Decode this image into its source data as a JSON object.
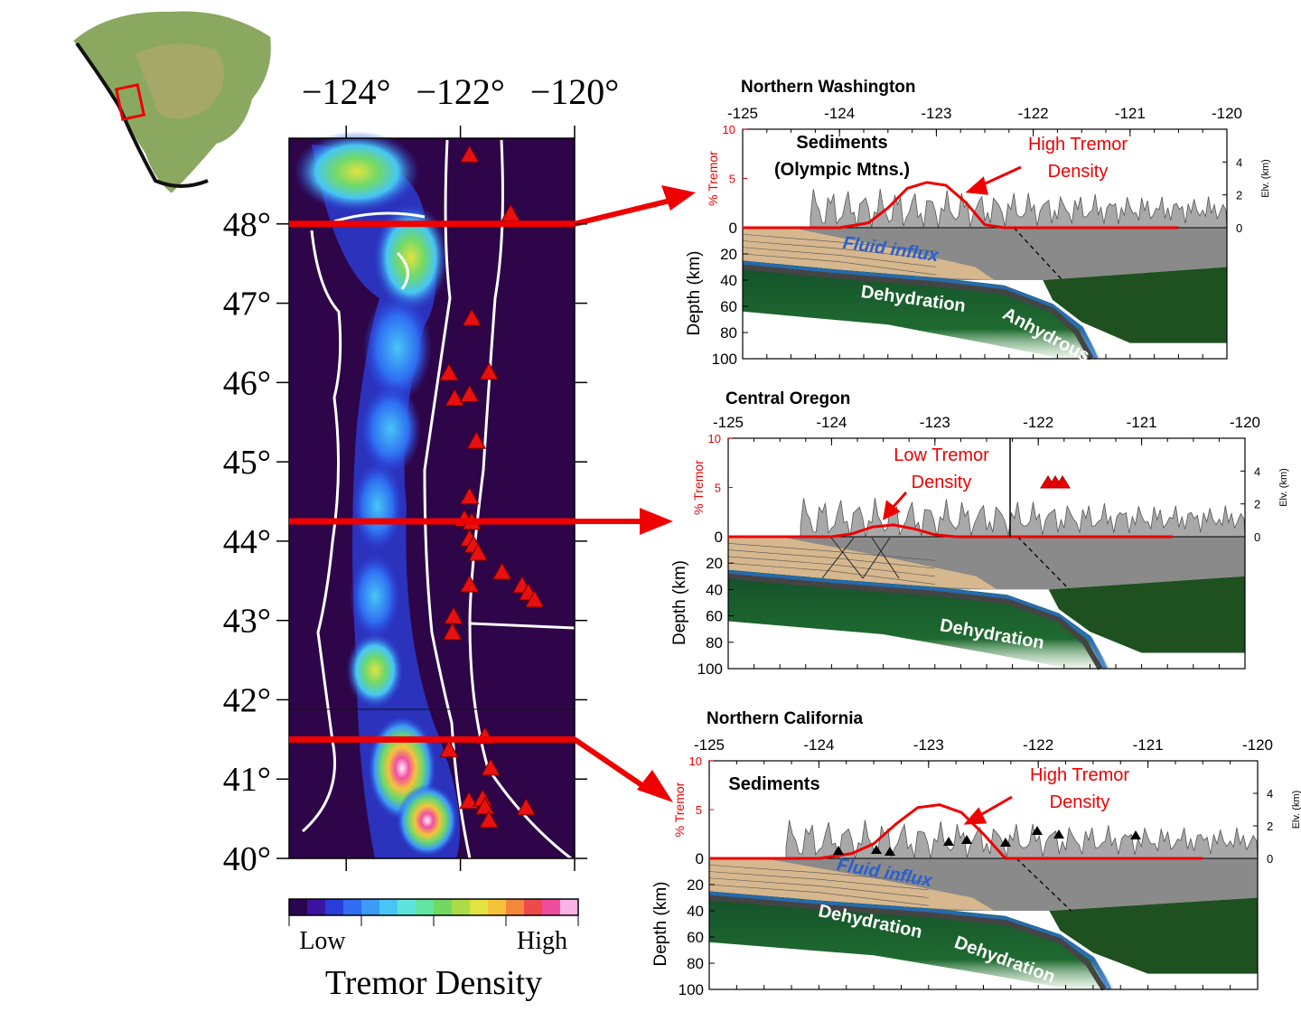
{
  "map": {
    "lon_lim": [
      -125,
      -120
    ],
    "lat_lim": [
      40,
      49.08
    ],
    "lon_ticks": [
      {
        "value": -124,
        "label": "−124°"
      },
      {
        "value": -122,
        "label": "−122°"
      },
      {
        "value": -120,
        "label": "−120°"
      }
    ],
    "lat_ticks": [
      {
        "value": 48,
        "label": "48°"
      },
      {
        "value": 47,
        "label": "47°"
      },
      {
        "value": 46,
        "label": "46°"
      },
      {
        "value": 45,
        "label": "45°"
      },
      {
        "value": 44,
        "label": "44°"
      },
      {
        "value": 43,
        "label": "43°"
      },
      {
        "value": 42,
        "label": "42°"
      },
      {
        "value": 41,
        "label": "41°"
      },
      {
        "value": 40,
        "label": "40°"
      }
    ],
    "volcanoes": {
      "lon": [
        -121.84,
        -121.12,
        -121.8,
        -122.2,
        -121.5,
        -122.1,
        -121.84,
        -121.72,
        -121.84,
        -121.93,
        -121.8,
        -121.84,
        -121.77,
        -121.69,
        -121.27,
        -121.84,
        -120.92,
        -120.81,
        -120.7,
        -122.12,
        -122.14,
        -121.57,
        -122.2,
        -121.47,
        -121.85,
        -121.61,
        -121.57,
        -121.5,
        -120.85
      ],
      "lat": [
        48.87,
        48.13,
        46.81,
        46.12,
        46.13,
        45.8,
        45.85,
        45.26,
        44.56,
        44.28,
        44.24,
        44.03,
        43.95,
        43.85,
        43.61,
        43.45,
        43.44,
        43.35,
        43.26,
        43.05,
        42.85,
        41.54,
        41.37,
        41.14,
        40.72,
        40.75,
        40.65,
        40.48,
        40.64
      ]
    },
    "colorbar": {
      "low": "Low",
      "high": "High",
      "title": "Tremor Density",
      "colors": [
        "#2a0650",
        "#3a14a0",
        "#2b3dd8",
        "#2f6ef2",
        "#3b9bf7",
        "#47c6f6",
        "#5de4dc",
        "#63e6a4",
        "#72d862",
        "#a9dc48",
        "#e2e240",
        "#f6c23a",
        "#f5873c",
        "#ee4a4a",
        "#f04c9e",
        "#f9b2e6"
      ]
    }
  },
  "sections": [
    {
      "title": "Northern Washington",
      "lat": 48,
      "xlim": [
        -125,
        -120
      ],
      "xticks": [
        -125,
        -124,
        -123,
        -122,
        -121,
        -120
      ],
      "depth_lim": [
        0,
        100
      ],
      "depth_ticks": [
        0,
        20,
        40,
        60,
        80,
        100
      ],
      "depth_label": "Depth (km)",
      "tremor_lim": [
        0,
        10
      ],
      "tremor_ticks": [
        5,
        10
      ],
      "tremor_label": "% Tremor",
      "elv_lim": [
        0,
        6
      ],
      "elv_ticks": [
        0,
        2,
        4
      ],
      "elv_label": "Elv. (km)",
      "tremor": {
        "x": [
          -125,
          -124.5,
          -124,
          -123.7,
          -123.5,
          -123.3,
          -123.1,
          -122.9,
          -122.7,
          -122.5,
          -122.3,
          -120.5
        ],
        "values": [
          0,
          0,
          0,
          0.5,
          2,
          4,
          4.6,
          4.3,
          2.6,
          0.3,
          0,
          0
        ]
      },
      "annotations": [
        "Sediments",
        "(Olympic Mtns.)",
        "High Tremor",
        "Density",
        "Fluid influx",
        "Dehydration",
        "Anhydrous"
      ]
    },
    {
      "title": "Central Oregon",
      "lat": 44.25,
      "xlim": [
        -125,
        -120
      ],
      "xticks": [
        -125,
        -124,
        -123,
        -122,
        -121,
        -120
      ],
      "depth_lim": [
        0,
        100
      ],
      "depth_ticks": [
        0,
        20,
        40,
        60,
        80,
        100
      ],
      "depth_label": "Depth (km)",
      "tremor_lim": [
        0,
        10
      ],
      "tremor_ticks": [
        5,
        10
      ],
      "tremor_label": "% Tremor",
      "elv_lim": [
        0,
        6
      ],
      "elv_ticks": [
        0,
        2,
        4
      ],
      "elv_label": "Elv. (km)",
      "tremor": {
        "x": [
          -125,
          -124,
          -123.8,
          -123.6,
          -123.4,
          -123.2,
          -123,
          -122.8,
          -120.7
        ],
        "values": [
          0,
          0,
          0.3,
          1,
          1.2,
          0.8,
          0.2,
          0,
          0
        ]
      },
      "annotations": [
        "Low Tremor",
        "Density",
        "Dehydration"
      ]
    },
    {
      "title": "Northern California",
      "lat": 41.5,
      "xlim": [
        -125,
        -120
      ],
      "xticks": [
        -125,
        -124,
        -123,
        -122,
        -121,
        -120
      ],
      "depth_lim": [
        0,
        100
      ],
      "depth_ticks": [
        0,
        20,
        40,
        60,
        80,
        100
      ],
      "depth_label": "Depth (km)",
      "tremor_lim": [
        0,
        10
      ],
      "tremor_ticks": [
        5,
        10
      ],
      "tremor_label": "% Tremor",
      "elv_lim": [
        0,
        6
      ],
      "elv_ticks": [
        0,
        2,
        4
      ],
      "elv_label": "Elv. (km)",
      "tremor": {
        "x": [
          -125,
          -124,
          -123.7,
          -123.5,
          -123.3,
          -123.1,
          -122.9,
          -122.7,
          -122.5,
          -122.3,
          -120.5
        ],
        "values": [
          0,
          0,
          0.5,
          1.5,
          3.5,
          5.2,
          5.5,
          4.7,
          2.5,
          0,
          0
        ]
      },
      "annotations": [
        "Sediments",
        "High Tremor",
        "Density",
        "Fluid influx",
        "Dehydration",
        "Dehydration"
      ]
    }
  ]
}
